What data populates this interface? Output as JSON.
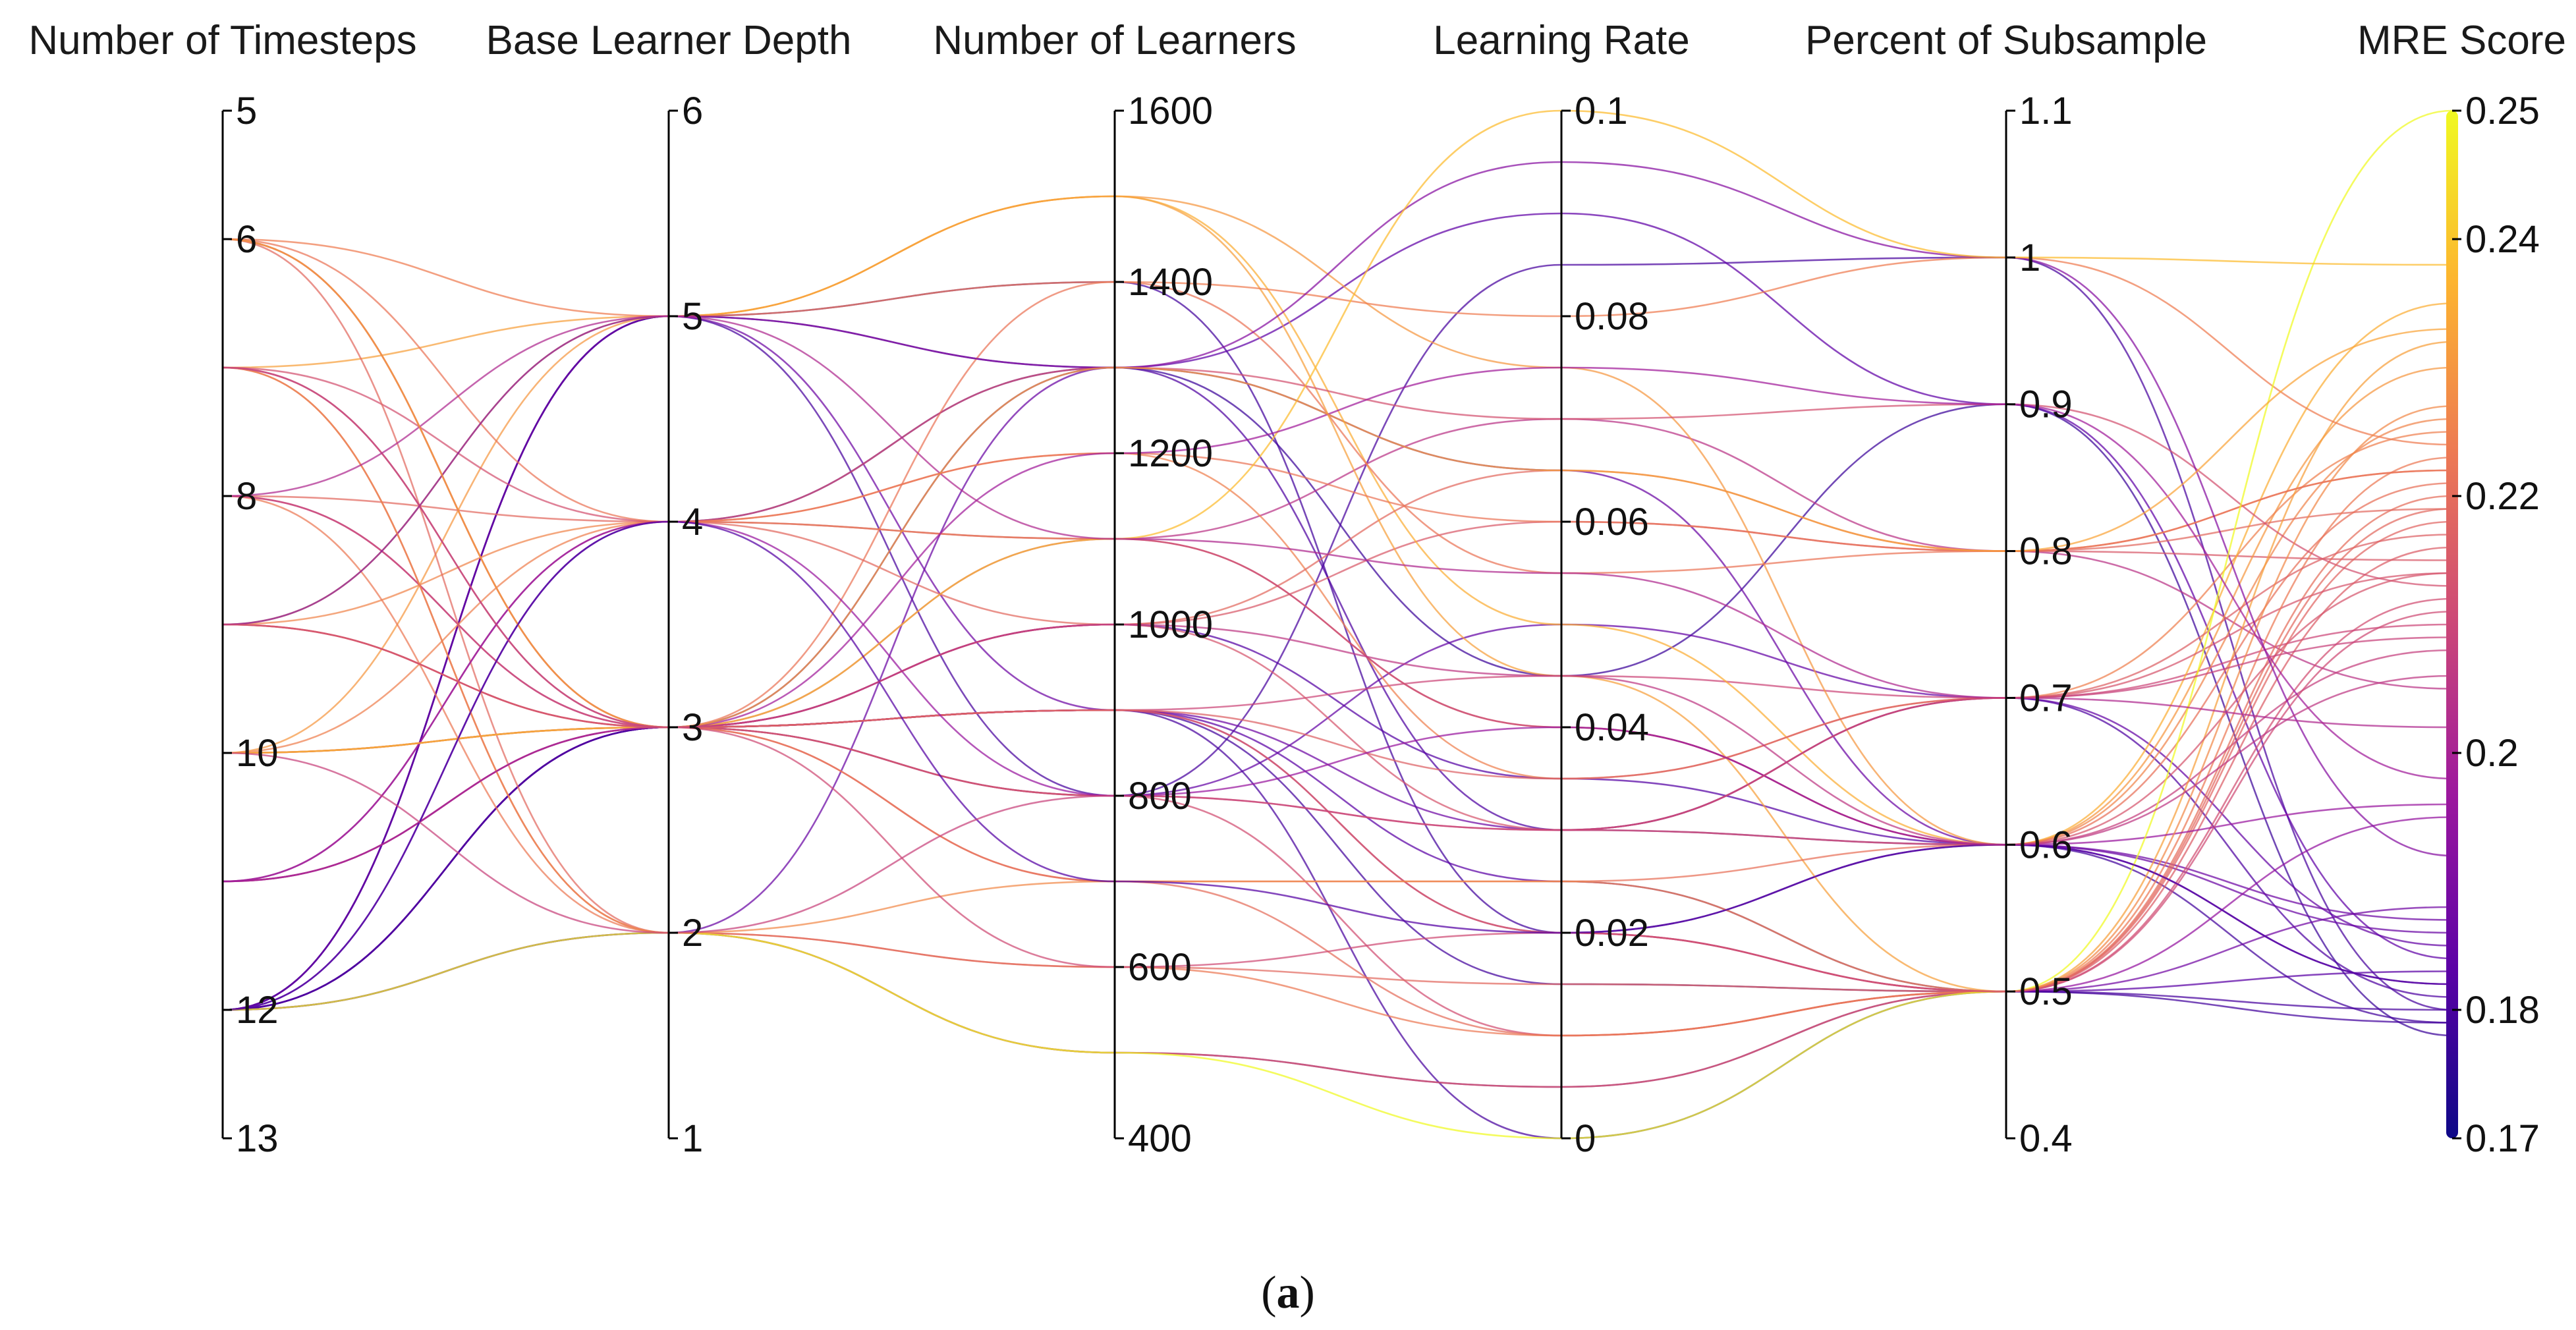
{
  "chart_data": {
    "type": "parallel_coordinates",
    "caption_prefix": "(",
    "caption_letter": "a",
    "caption_suffix": ")",
    "axes": [
      {
        "key": "timesteps",
        "title": "Number of Timesteps",
        "range": [
          5,
          13
        ],
        "ticks": [
          5,
          6,
          8,
          10,
          12,
          13
        ],
        "tick_labels": [
          "5",
          "6",
          "8",
          "10",
          "12",
          "13"
        ]
      },
      {
        "key": "depth",
        "title": "Base Learner Depth",
        "range": [
          6,
          1
        ],
        "ticks": [
          6,
          5,
          4,
          3,
          2,
          1
        ],
        "tick_labels": [
          "6",
          "5",
          "4",
          "3",
          "2",
          "1"
        ]
      },
      {
        "key": "learners",
        "title": "Number of Learners",
        "range": [
          1600,
          400
        ],
        "ticks": [
          1600,
          1400,
          1200,
          1000,
          800,
          600,
          400
        ],
        "tick_labels": [
          "1600",
          "1400",
          "1200",
          "1000",
          "800",
          "600",
          "400"
        ]
      },
      {
        "key": "lr",
        "title": "Learning Rate",
        "range": [
          0.1,
          0
        ],
        "ticks": [
          0.1,
          0.08,
          0.06,
          0.04,
          0.02,
          0
        ],
        "tick_labels": [
          "0.1",
          "0.08",
          "0.06",
          "0.04",
          "0.02",
          "0"
        ]
      },
      {
        "key": "subsample",
        "title": "Percent of Subsample",
        "range": [
          1.1,
          0.4
        ],
        "ticks": [
          1.1,
          1.0,
          0.9,
          0.8,
          0.7,
          0.6,
          0.5,
          0.4
        ],
        "tick_labels": [
          "1.1",
          "1",
          "0.9",
          "0.8",
          "0.7",
          "0.6",
          "0.5",
          "0.4"
        ]
      },
      {
        "key": "mre",
        "title": "MRE Score",
        "range": [
          0.25,
          0.17
        ],
        "ticks": [
          0.25,
          0.24,
          0.22,
          0.2,
          0.18,
          0.17
        ],
        "tick_labels": [
          "0.25",
          "0.24",
          "0.22",
          "0.2",
          "0.18",
          "0.17"
        ],
        "is_colorbar": true
      }
    ],
    "colorscale": [
      "#0d0887",
      "#5c01a6",
      "#9c179e",
      "#cc4778",
      "#ed7953",
      "#fdb42f",
      "#f0f921"
    ],
    "color_range": [
      0.17,
      0.25
    ],
    "lines": [
      [
        12,
        5,
        1300,
        0.045,
        0.9,
        0.178
      ],
      [
        12,
        5,
        1400,
        0.02,
        0.6,
        0.179
      ],
      [
        12,
        5,
        800,
        0.085,
        1.0,
        0.18
      ],
      [
        12,
        4,
        1300,
        0.03,
        0.7,
        0.181
      ],
      [
        12,
        3,
        900,
        0.015,
        0.5,
        0.179
      ],
      [
        12,
        3,
        1000,
        0.035,
        0.6,
        0.182
      ],
      [
        12,
        3,
        900,
        0.025,
        0.5,
        0.183
      ],
      [
        12,
        3,
        800,
        0.05,
        0.7,
        0.185
      ],
      [
        12,
        3,
        1300,
        0.09,
        0.9,
        0.184
      ],
      [
        12,
        2,
        1300,
        0.065,
        0.6,
        0.186
      ],
      [
        12,
        2,
        500,
        0.005,
        0.5,
        0.188
      ],
      [
        12,
        3,
        900,
        0.0,
        0.5,
        0.18
      ],
      [
        12,
        5,
        900,
        0.03,
        0.6,
        0.187
      ],
      [
        11,
        3,
        900,
        0.02,
        0.5,
        0.195
      ],
      [
        11,
        4,
        1100,
        0.07,
        0.8,
        0.205
      ],
      [
        11,
        3,
        800,
        0.01,
        0.5,
        0.212
      ],
      [
        10,
        3,
        900,
        0.045,
        0.7,
        0.21
      ],
      [
        10,
        3,
        1000,
        0.06,
        0.8,
        0.215
      ],
      [
        10,
        3,
        700,
        0.01,
        0.5,
        0.22
      ],
      [
        10,
        5,
        1500,
        0.075,
        0.6,
        0.23
      ],
      [
        10,
        4,
        1200,
        0.035,
        0.7,
        0.225
      ],
      [
        9,
        3,
        900,
        0.02,
        0.5,
        0.218
      ],
      [
        9,
        5,
        1500,
        0.05,
        0.6,
        0.235
      ],
      [
        9,
        4,
        1100,
        0.04,
        0.6,
        0.226
      ],
      [
        9,
        3,
        1400,
        0.055,
        0.8,
        0.222
      ],
      [
        8,
        3,
        800,
        0.03,
        0.7,
        0.214
      ],
      [
        8,
        4,
        1000,
        0.065,
        0.8,
        0.219
      ],
      [
        8,
        2,
        600,
        0.01,
        0.5,
        0.223
      ],
      [
        8,
        3,
        1100,
        0.04,
        0.6,
        0.208
      ],
      [
        7,
        5,
        1500,
        0.045,
        0.5,
        0.232
      ],
      [
        7,
        3,
        700,
        0.025,
        0.6,
        0.221
      ],
      [
        7,
        2,
        500,
        0.005,
        0.5,
        0.216
      ],
      [
        7,
        4,
        1300,
        0.07,
        0.9,
        0.213
      ],
      [
        6,
        5,
        1400,
        0.08,
        1.0,
        0.224
      ],
      [
        6,
        3,
        900,
        0.035,
        0.7,
        0.217
      ],
      [
        6,
        2,
        600,
        0.015,
        0.5,
        0.219
      ],
      [
        6,
        4,
        1200,
        0.06,
        0.8,
        0.222
      ],
      [
        6,
        3,
        1000,
        0.03,
        0.6,
        0.214
      ],
      [
        9,
        5,
        1300,
        0.095,
        1.0,
        0.192
      ],
      [
        11,
        4,
        800,
        0.04,
        0.6,
        0.196
      ],
      [
        12,
        2,
        500,
        0.0,
        0.5,
        0.25
      ],
      [
        10,
        3,
        1100,
        0.1,
        1.0,
        0.238
      ],
      [
        7,
        2,
        700,
        0.025,
        0.5,
        0.227
      ],
      [
        11,
        3,
        1200,
        0.075,
        0.9,
        0.198
      ],
      [
        8,
        5,
        1100,
        0.055,
        0.7,
        0.202
      ],
      [
        9,
        3,
        600,
        0.02,
        0.5,
        0.211
      ],
      [
        6,
        3,
        1300,
        0.065,
        0.8,
        0.233
      ],
      [
        12,
        4,
        700,
        0.02,
        0.6,
        0.182
      ],
      [
        10,
        2,
        800,
        0.03,
        0.7,
        0.209
      ],
      [
        7,
        3,
        1000,
        0.045,
        0.6,
        0.206
      ]
    ]
  }
}
